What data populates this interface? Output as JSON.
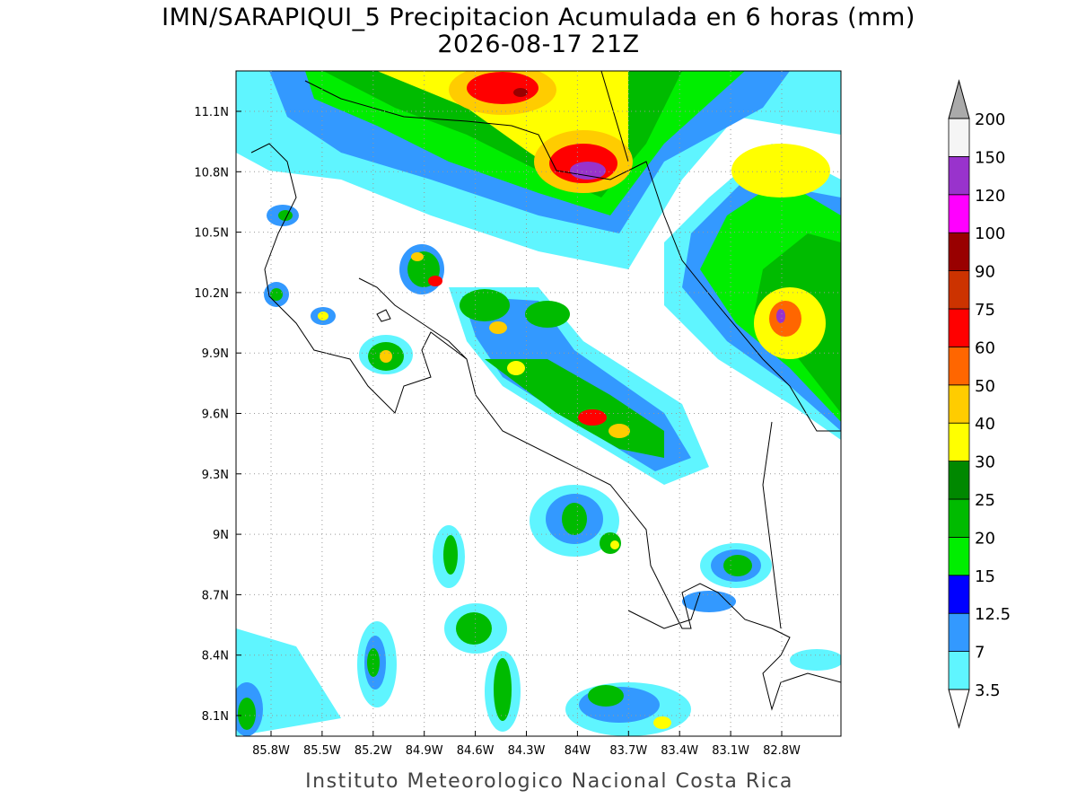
{
  "title": "IMN/SARAPIQUI_5 Precipitacion Acumulada en 6 horas (mm)",
  "subtitle": "2026-08-17 21Z",
  "footer": "Instituto Meteorologico Nacional Costa Rica",
  "lon_ticks": [
    "85.8W",
    "85.5W",
    "85.2W",
    "84.9W",
    "84.6W",
    "84.3W",
    "84W",
    "83.7W",
    "83.4W",
    "83.1W",
    "82.8W"
  ],
  "lat_ticks": [
    "11.1N",
    "10.8N",
    "10.5N",
    "10.2N",
    "9.9N",
    "9.6N",
    "9.3N",
    "9N",
    "8.7N",
    "8.4N",
    "8.1N"
  ],
  "colorbar": {
    "levels": [
      3.5,
      7,
      12.5,
      15,
      20,
      25,
      30,
      40,
      50,
      60,
      75,
      90,
      100,
      120,
      150,
      200
    ],
    "colors": [
      "#5ff5ff",
      "#3399ff",
      "#0000ff",
      "#00ee00",
      "#00bb00",
      "#008800",
      "#ffff00",
      "#ffcc00",
      "#ff6600",
      "#ff0000",
      "#cc3300",
      "#990000",
      "#ff00ff",
      "#9933cc",
      "#f5f5f5"
    ],
    "over_color": "#aaaaaa",
    "under_color": "#ffffff"
  }
}
